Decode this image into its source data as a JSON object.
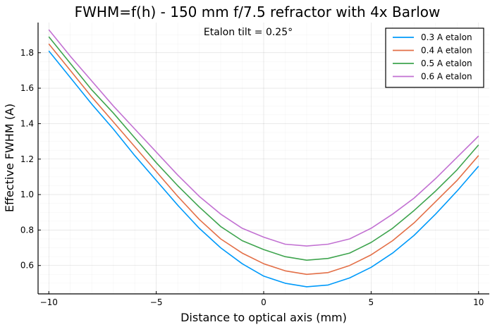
{
  "chart_data": {
    "type": "line",
    "title": "FWHM=f(h) - 150 mm f/7.5 refractor with 4x Barlow",
    "annotation": "Etalon tilt = 0.25°",
    "xlabel": "Distance to optical axis (mm)",
    "ylabel": "Effective FWHM (A)",
    "xlim": [
      -10.5,
      10.5
    ],
    "ylim": [
      0.44,
      1.97
    ],
    "xticks": [
      -10,
      -5,
      0,
      5,
      10
    ],
    "xtick_labels": [
      "−10",
      "−5",
      "0",
      "5",
      "10"
    ],
    "yticks": [
      0.6,
      0.8,
      1.0,
      1.2,
      1.4,
      1.6,
      1.8
    ],
    "ytick_labels": [
      "0.6",
      "0.8",
      "1.0",
      "1.2",
      "1.4",
      "1.6",
      "1.8"
    ],
    "grid": true,
    "legend_position": "top-right",
    "x": [
      -10,
      -9,
      -8,
      -7,
      -6,
      -5,
      -4,
      -3,
      -2,
      -1,
      0,
      1,
      2,
      3,
      4,
      5,
      6,
      7,
      8,
      9,
      10
    ],
    "series": [
      {
        "name": "0.3 A etalon",
        "color": "#009AFA",
        "values": [
          1.81,
          1.66,
          1.51,
          1.37,
          1.22,
          1.08,
          0.94,
          0.81,
          0.7,
          0.61,
          0.54,
          0.5,
          0.48,
          0.49,
          0.53,
          0.59,
          0.67,
          0.77,
          0.89,
          1.02,
          1.16
        ]
      },
      {
        "name": "0.4 A etalon",
        "color": "#E36F47",
        "values": [
          1.85,
          1.7,
          1.55,
          1.41,
          1.27,
          1.13,
          0.99,
          0.86,
          0.75,
          0.67,
          0.61,
          0.57,
          0.55,
          0.56,
          0.6,
          0.66,
          0.74,
          0.84,
          0.96,
          1.08,
          1.22
        ]
      },
      {
        "name": "0.5 A etalon",
        "color": "#3EA44E",
        "values": [
          1.89,
          1.74,
          1.59,
          1.46,
          1.32,
          1.18,
          1.05,
          0.93,
          0.82,
          0.74,
          0.69,
          0.65,
          0.63,
          0.64,
          0.67,
          0.73,
          0.81,
          0.91,
          1.02,
          1.14,
          1.28
        ]
      },
      {
        "name": "0.6 A etalon",
        "color": "#C271D2",
        "values": [
          1.93,
          1.78,
          1.64,
          1.5,
          1.37,
          1.24,
          1.11,
          0.99,
          0.89,
          0.81,
          0.76,
          0.72,
          0.71,
          0.72,
          0.75,
          0.81,
          0.89,
          0.98,
          1.09,
          1.21,
          1.33
        ]
      }
    ]
  }
}
